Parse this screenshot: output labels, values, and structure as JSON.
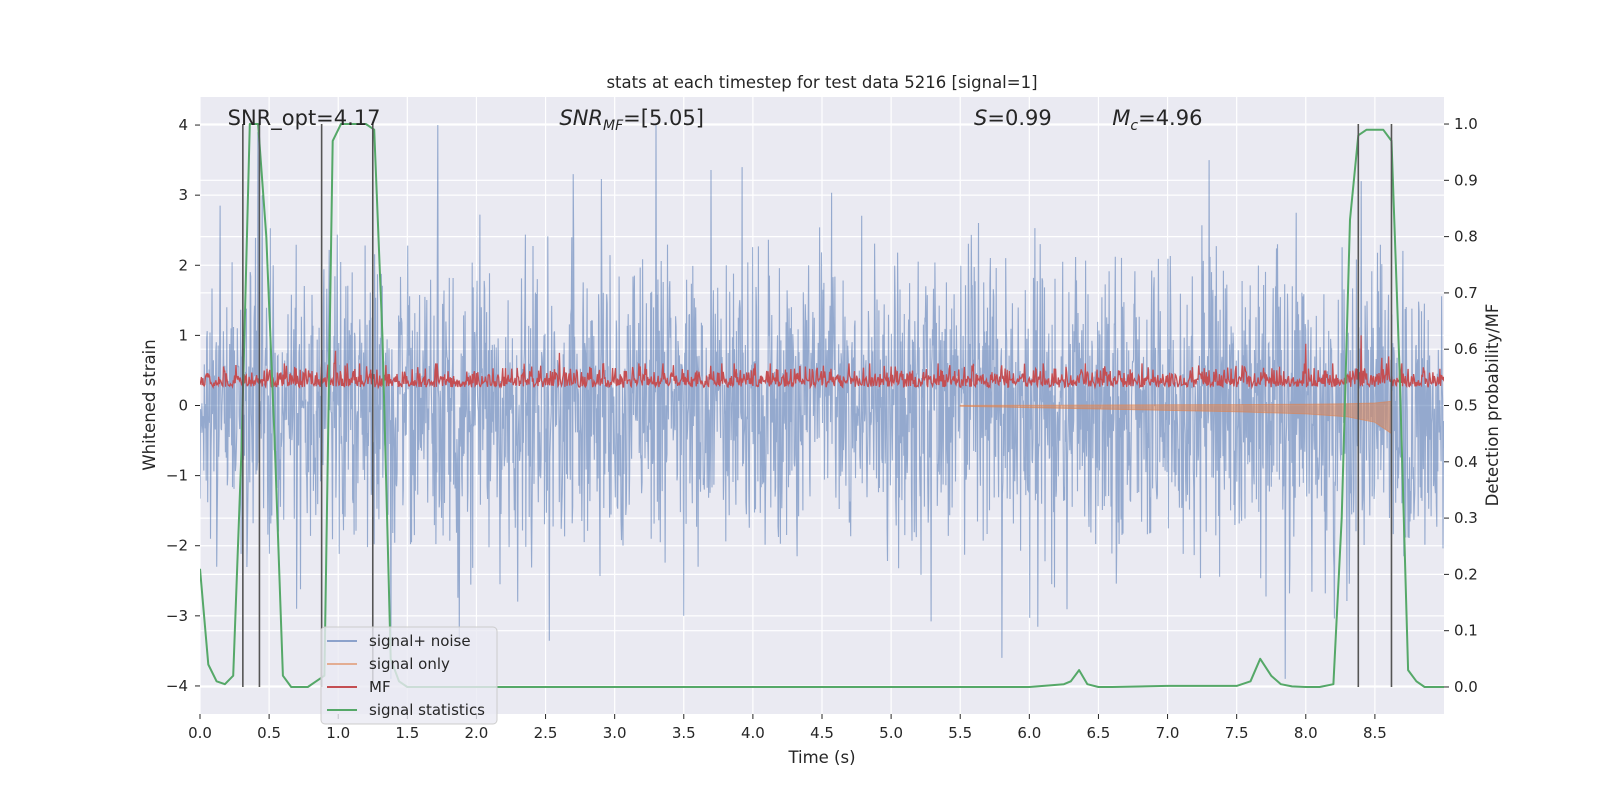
{
  "chart_data": {
    "type": "line",
    "title": "stats at each timestep for test data 5216 [signal=1]",
    "xlabel": "Time (s)",
    "ylabel": "Whitened strain",
    "y2label": "Detection probability/MF",
    "xlim": [
      0.0,
      9.0
    ],
    "ylim": [
      -4.4,
      4.4
    ],
    "y2lim": [
      -0.048,
      1.048
    ],
    "x_ticks": [
      0.0,
      0.5,
      1.0,
      1.5,
      2.0,
      2.5,
      3.0,
      3.5,
      4.0,
      4.5,
      5.0,
      5.5,
      6.0,
      6.5,
      7.0,
      7.5,
      8.0,
      8.5
    ],
    "x_tick_labels": [
      "0.0",
      "0.5",
      "1.0",
      "1.5",
      "2.0",
      "2.5",
      "3.0",
      "3.5",
      "4.0",
      "4.5",
      "5.0",
      "5.5",
      "6.0",
      "6.5",
      "7.0",
      "7.5",
      "8.0",
      "8.5"
    ],
    "y_ticks": [
      -4,
      -3,
      -2,
      -1,
      0,
      1,
      2,
      3,
      4
    ],
    "y_tick_labels": [
      "−4",
      "−3",
      "−2",
      "−1",
      "0",
      "1",
      "2",
      "3",
      "4"
    ],
    "y2_ticks": [
      0.0,
      0.1,
      0.2,
      0.3,
      0.4,
      0.5,
      0.6,
      0.7,
      0.8,
      0.9,
      1.0
    ],
    "y2_tick_labels": [
      "0.0",
      "0.1",
      "0.2",
      "0.3",
      "0.4",
      "0.5",
      "0.6",
      "0.7",
      "0.8",
      "0.9",
      "1.0"
    ],
    "annotations": [
      {
        "text": "SNR_opt=4.17",
        "x": 0.2,
        "y": 4.1
      },
      {
        "text": "SNR_MF=[5.05]",
        "x": 2.6,
        "y": 4.1
      },
      {
        "text": "S=0.99",
        "x": 5.6,
        "y": 4.1
      },
      {
        "text": "M_c=4.96",
        "x": 6.6,
        "y": 4.1
      }
    ],
    "legend": {
      "location": "lower-left",
      "entries": [
        "signal+ noise",
        "signal only",
        "MF",
        "signal statistics"
      ]
    },
    "grid": true,
    "series": [
      {
        "name": "signal+ noise",
        "axis": "left",
        "color": "#4c72b0",
        "style": "dense noise trace, typical amplitude ±1.6, peaks to about ±4",
        "peak_points": [
          {
            "x": 0.42,
            "y": 3.9
          },
          {
            "x": 0.45,
            "y": 3.0
          },
          {
            "x": 1.72,
            "y": 4.0
          },
          {
            "x": 3.3,
            "y": 4.0
          },
          {
            "x": 2.7,
            "y": 3.3
          },
          {
            "x": 7.3,
            "y": 3.5
          },
          {
            "x": 8.4,
            "y": 3.2
          },
          {
            "x": 1.38,
            "y": -3.9
          },
          {
            "x": 5.8,
            "y": -3.6
          },
          {
            "x": 7.85,
            "y": -3.9
          },
          {
            "x": 0.7,
            "y": -2.9
          },
          {
            "x": 3.5,
            "y": -3.0
          }
        ]
      },
      {
        "name": "signal only",
        "axis": "left",
        "color": "#dd8452",
        "style": "chirp envelope, growing towards merger",
        "envelope": {
          "x": [
            5.5,
            6.0,
            6.5,
            7.0,
            7.5,
            8.0,
            8.3,
            8.5,
            8.62
          ],
          "y": [
            0.01,
            0.03,
            0.05,
            0.07,
            0.09,
            0.12,
            0.16,
            0.24,
            0.4
          ]
        }
      },
      {
        "name": "MF",
        "axis": "left",
        "color": "#c44e52",
        "style": "noisy positive trace, baseline ~0.25, spikes to ~0.8",
        "spikes": [
          {
            "x": 0.98,
            "y": 0.78
          },
          {
            "x": 2.6,
            "y": 0.75
          },
          {
            "x": 8.0,
            "y": 0.88
          },
          {
            "x": 8.4,
            "y": 1.0
          },
          {
            "x": 8.55,
            "y": 0.68
          },
          {
            "x": 8.6,
            "y": 0.7
          }
        ]
      },
      {
        "name": "signal statistics",
        "axis": "right",
        "color": "#55a868",
        "x": [
          0.0,
          0.06,
          0.12,
          0.18,
          0.24,
          0.3,
          0.36,
          0.42,
          0.48,
          0.54,
          0.6,
          0.66,
          0.72,
          0.78,
          0.84,
          0.9,
          0.96,
          1.02,
          1.08,
          1.14,
          1.2,
          1.26,
          1.32,
          1.38,
          1.44,
          1.5,
          1.56,
          1.62,
          1.68,
          1.75,
          2.0,
          2.5,
          3.0,
          3.5,
          4.0,
          4.5,
          5.0,
          5.5,
          6.0,
          6.25,
          6.3,
          6.36,
          6.42,
          6.5,
          6.6,
          7.0,
          7.5,
          7.6,
          7.67,
          7.75,
          7.82,
          7.9,
          8.0,
          8.1,
          8.2,
          8.26,
          8.32,
          8.38,
          8.44,
          8.5,
          8.56,
          8.62,
          8.68,
          8.74,
          8.8,
          8.86,
          8.92,
          9.0
        ],
        "values": [
          0.21,
          0.04,
          0.01,
          0.005,
          0.02,
          0.42,
          1.0,
          1.0,
          0.8,
          0.44,
          0.02,
          0.0,
          0.0,
          0.0,
          0.01,
          0.02,
          0.97,
          1.0,
          1.0,
          1.0,
          1.0,
          0.99,
          0.62,
          0.05,
          0.01,
          0.0,
          0.0,
          0.0,
          0.0,
          0.0,
          0.0,
          0.0,
          0.0,
          0.0,
          0.0,
          0.0,
          0.0,
          0.0,
          0.0,
          0.005,
          0.01,
          0.03,
          0.005,
          0.0,
          0.0,
          0.002,
          0.002,
          0.01,
          0.05,
          0.02,
          0.005,
          0.001,
          0.0,
          0.0,
          0.005,
          0.3,
          0.83,
          0.98,
          0.99,
          0.99,
          0.99,
          0.97,
          0.55,
          0.03,
          0.01,
          0.0,
          0.0,
          0.0
        ]
      }
    ],
    "vertical_markers": [
      0.31,
      0.43,
      0.88,
      1.25,
      8.38,
      8.62
    ]
  }
}
